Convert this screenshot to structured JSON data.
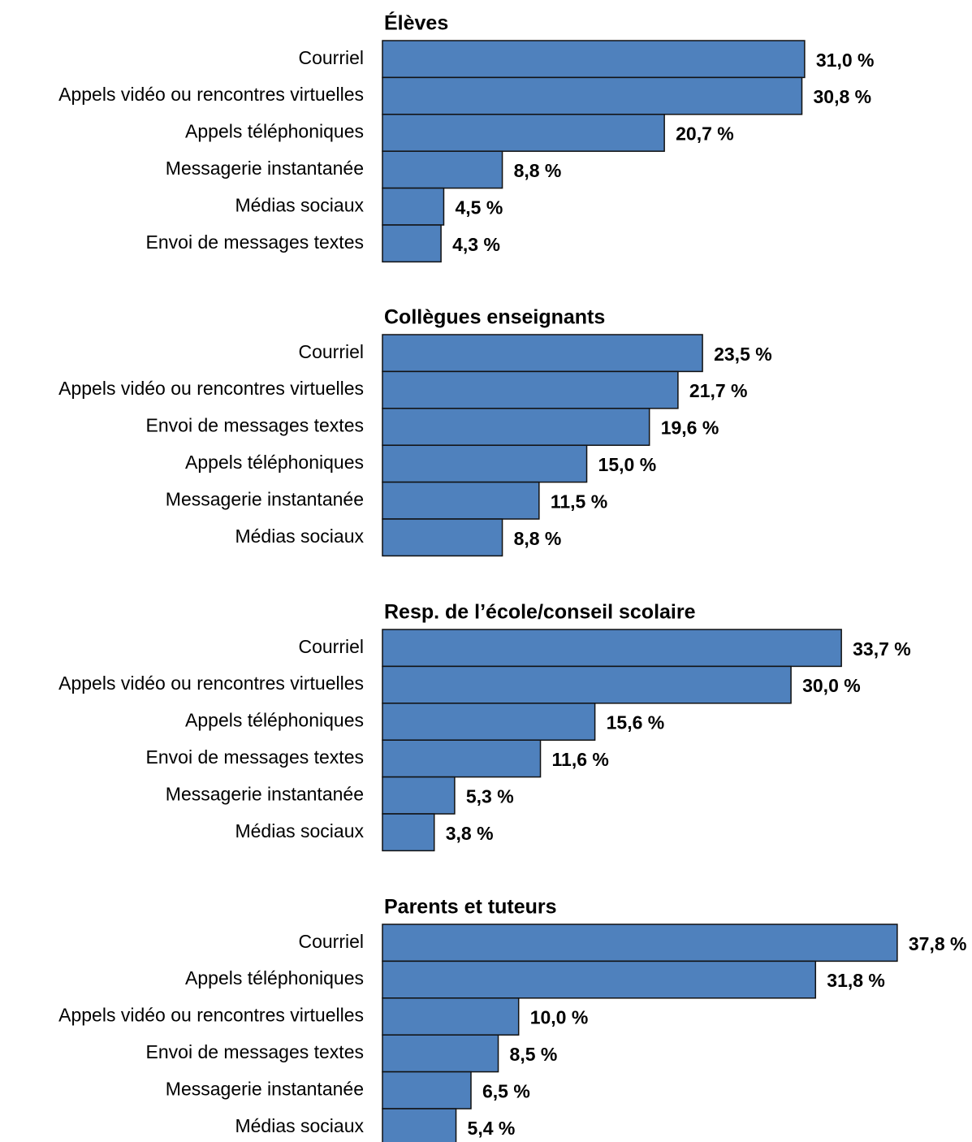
{
  "chart_data": [
    {
      "type": "bar",
      "title": "Élèves",
      "color": "#4f81bd",
      "categories": [
        "Courriel",
        "Appels vidéo ou rencontres virtuelles",
        "Appels téléphoniques",
        "Messagerie instantanée",
        "Médias sociaux",
        "Envoi de messages textes"
      ],
      "values": [
        31.0,
        30.8,
        20.7,
        8.8,
        4.5,
        4.3
      ],
      "value_labels": [
        "31,0 %",
        "30,8 %",
        "20,7 %",
        "8,8 %",
        "4,5 %",
        "4,3 %"
      ]
    },
    {
      "type": "bar",
      "title": "Collègues enseignants",
      "color": "#4f81bd",
      "categories": [
        "Courriel",
        "Appels vidéo ou rencontres virtuelles",
        "Envoi de messages textes",
        "Appels téléphoniques",
        "Messagerie instantanée",
        "Médias sociaux"
      ],
      "values": [
        23.5,
        21.7,
        19.6,
        15.0,
        11.5,
        8.8
      ],
      "value_labels": [
        "23,5 %",
        "21,7 %",
        "19,6 %",
        "15,0 %",
        "11,5 %",
        "8,8 %"
      ]
    },
    {
      "type": "bar",
      "title": "Resp. de l’école/conseil scolaire",
      "color": "#4f81bd",
      "categories": [
        "Courriel",
        "Appels vidéo ou rencontres virtuelles",
        "Appels téléphoniques",
        "Envoi de messages textes",
        "Messagerie instantanée",
        "Médias sociaux"
      ],
      "values": [
        33.7,
        30.0,
        15.6,
        11.6,
        5.3,
        3.8
      ],
      "value_labels": [
        "33,7 %",
        "30,0 %",
        "15,6 %",
        "11,6 %",
        "5,3 %",
        "3,8 %"
      ]
    },
    {
      "type": "bar",
      "title": "Parents et tuteurs",
      "color": "#4f81bd",
      "categories": [
        "Courriel",
        "Appels téléphoniques",
        "Appels vidéo ou rencontres virtuelles",
        "Envoi de messages textes",
        "Messagerie instantanée",
        "Médias sociaux"
      ],
      "values": [
        37.8,
        31.8,
        10.0,
        8.5,
        6.5,
        5.4
      ],
      "value_labels": [
        "37,8 %",
        "31,8 %",
        "10,0 %",
        "8,5 %",
        "6,5 %",
        "5,4 %"
      ]
    }
  ]
}
